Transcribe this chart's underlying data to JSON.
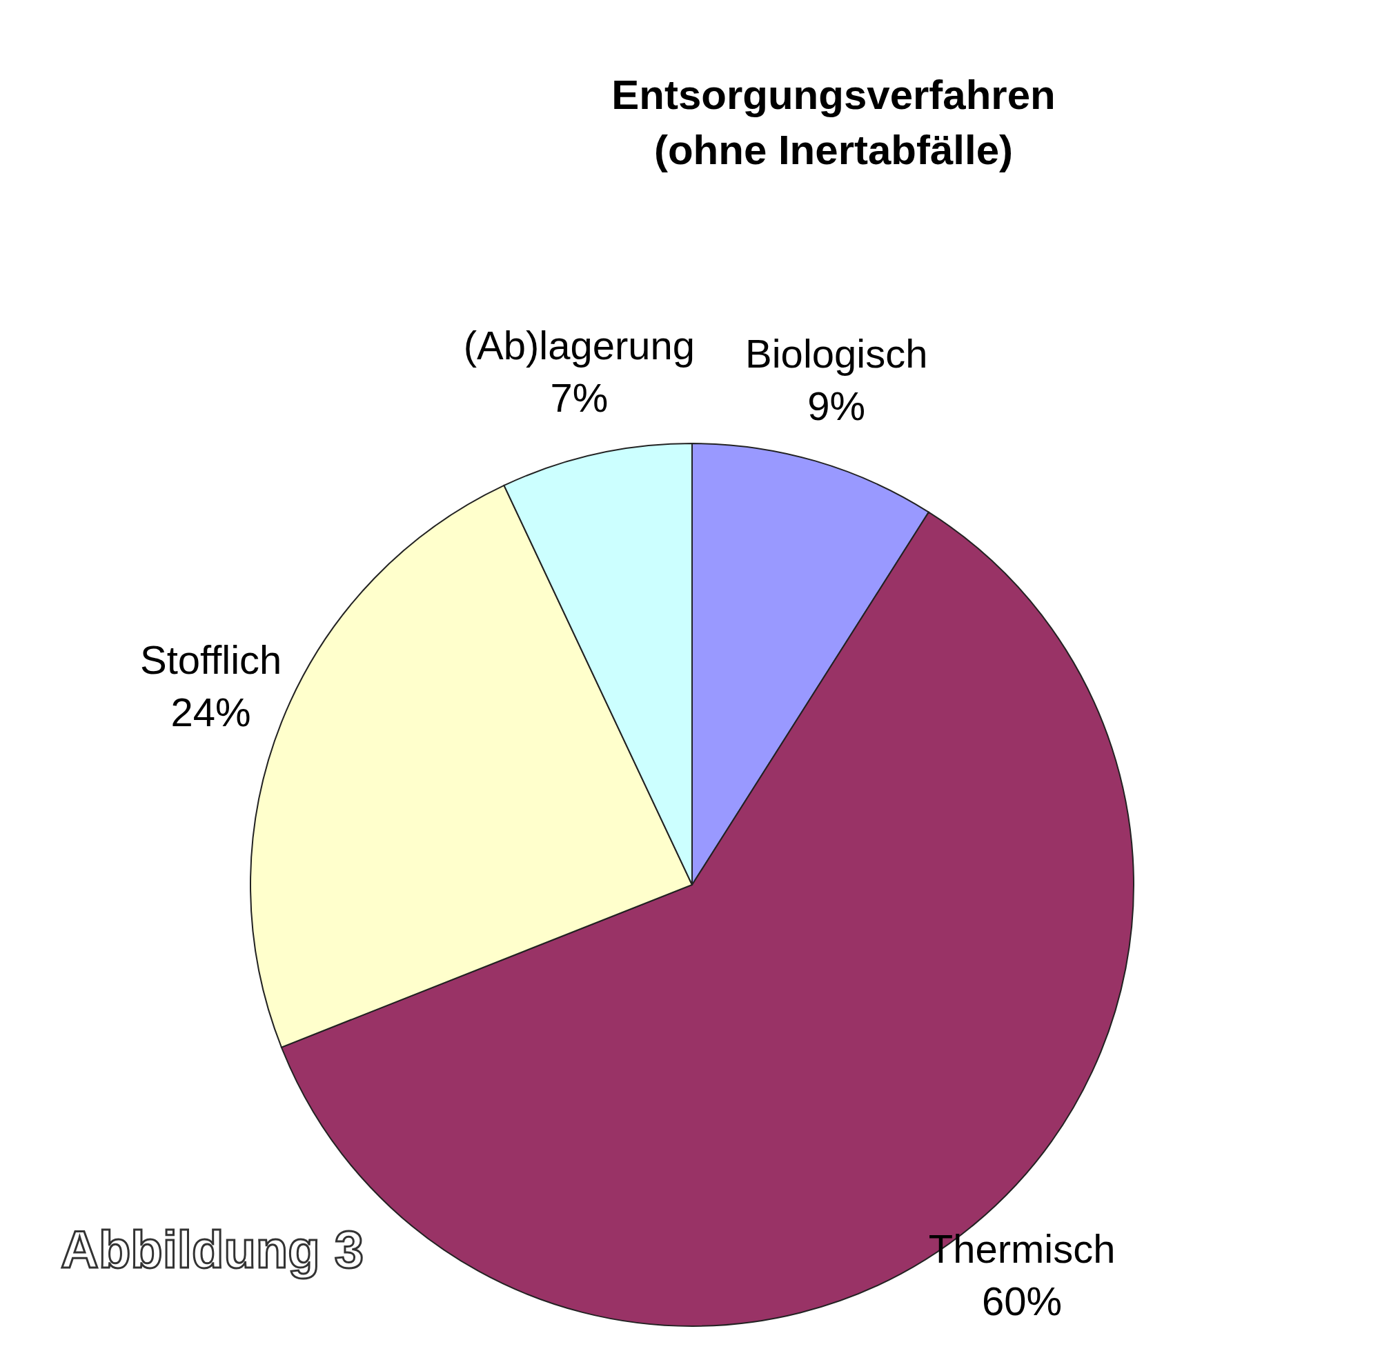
{
  "chart_data": {
    "type": "pie",
    "title": "Entsorgungsverfahren\n(ohne Inertabfälle)",
    "categories": [
      "Biologisch",
      "Thermisch",
      "Stofflich",
      "(Ab)lagerung"
    ],
    "values": [
      9,
      60,
      24,
      7
    ],
    "value_labels": [
      "9%",
      "60%",
      "24%",
      "7%"
    ],
    "colors": [
      "#9999ff",
      "#993366",
      "#ffffcc",
      "#ccffff"
    ],
    "annotations": [
      "Abbildung 3"
    ],
    "legend": false
  }
}
